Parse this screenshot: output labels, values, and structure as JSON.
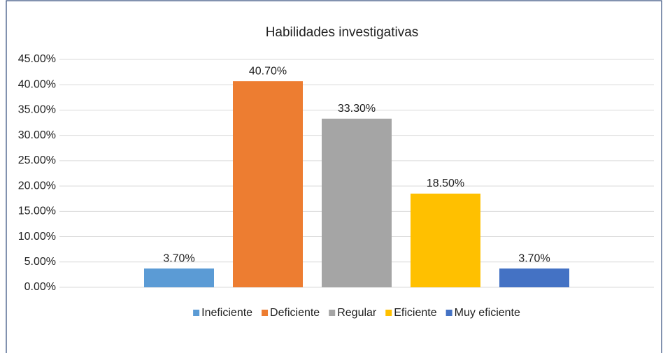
{
  "chart_data": {
    "type": "bar",
    "title": "Habilidades investigativas",
    "categories": [
      null
    ],
    "series": [
      {
        "name": "Ineficiente",
        "color": "#5b9bd5",
        "values": [
          3.7
        ],
        "value_labels": [
          "3.70%"
        ]
      },
      {
        "name": "Deficiente",
        "color": "#ed7d31",
        "values": [
          40.7
        ],
        "value_labels": [
          "40.70%"
        ]
      },
      {
        "name": "Regular",
        "color": "#a5a5a5",
        "values": [
          33.3
        ],
        "value_labels": [
          "33.30%"
        ]
      },
      {
        "name": "Eficiente",
        "color": "#ffc000",
        "values": [
          18.5
        ],
        "value_labels": [
          "18.50%"
        ]
      },
      {
        "name": "Muy eficiente",
        "color": "#4472c4",
        "values": [
          3.7
        ],
        "value_labels": [
          "3.70%"
        ]
      }
    ],
    "ylim": [
      0,
      45
    ],
    "yticks": [
      {
        "value": 0,
        "label": "0.00%"
      },
      {
        "value": 5,
        "label": "5.00%"
      },
      {
        "value": 10,
        "label": "10.00%"
      },
      {
        "value": 15,
        "label": "15.00%"
      },
      {
        "value": 20,
        "label": "20.00%"
      },
      {
        "value": 25,
        "label": "25.00%"
      },
      {
        "value": 30,
        "label": "30.00%"
      },
      {
        "value": 35,
        "label": "35.00%"
      },
      {
        "value": 40,
        "label": "40.00%"
      },
      {
        "value": 45,
        "label": "45.00%"
      }
    ],
    "grid": true,
    "legend": "bottom"
  }
}
